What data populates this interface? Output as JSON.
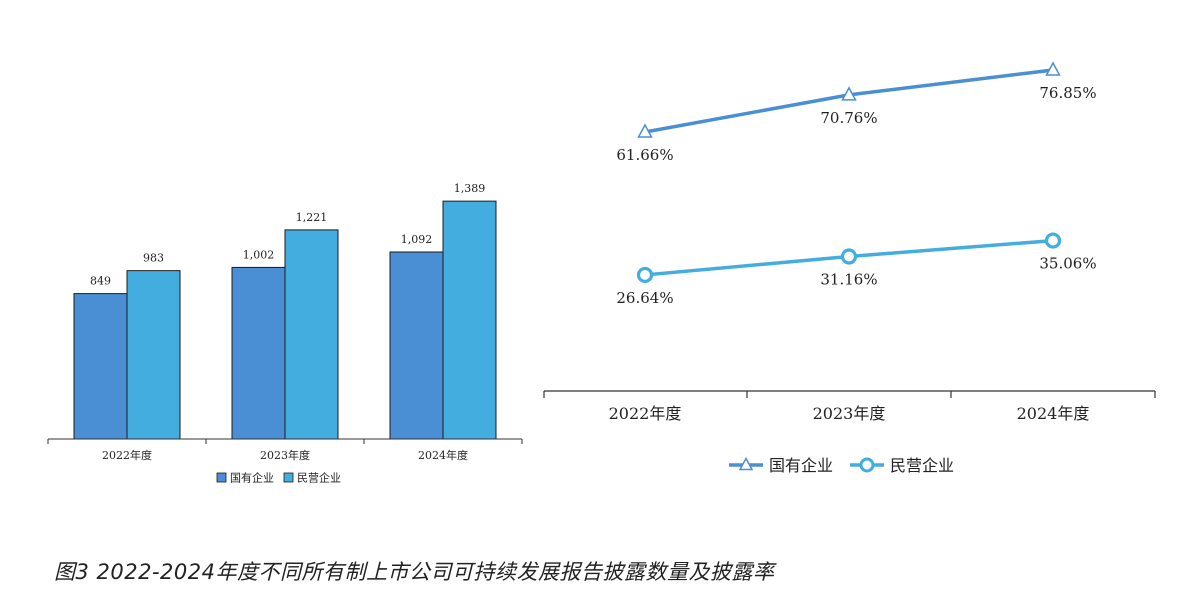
{
  "caption": "图3 2022-2024年度不同所有制上市公司可持续发展报告披露数量及披露率",
  "colors": {
    "state": "#4a8fd4",
    "private": "#44ade0",
    "axis": "#333333"
  },
  "chart_data": [
    {
      "type": "bar",
      "categories": [
        "2022年度",
        "2023年度",
        "2024年度"
      ],
      "series": [
        {
          "name": "国有企业",
          "values": [
            849,
            1002,
            1092
          ],
          "labels": [
            "849",
            "1,002",
            "1,092"
          ]
        },
        {
          "name": "民营企业",
          "values": [
            983,
            1221,
            1389
          ],
          "labels": [
            "983",
            "1,221",
            "1,389"
          ]
        }
      ],
      "ylim": [
        0,
        1600
      ],
      "legend": "bottom"
    },
    {
      "type": "line",
      "categories": [
        "2022年度",
        "2023年度",
        "2024年度"
      ],
      "series": [
        {
          "name": "国有企业",
          "marker": "triangle",
          "values": [
            61.66,
            70.76,
            76.85
          ],
          "labels": [
            "61.66%",
            "70.76%",
            "76.85%"
          ]
        },
        {
          "name": "民营企业",
          "marker": "circle",
          "values": [
            26.64,
            31.16,
            35.06
          ],
          "labels": [
            "26.64%",
            "31.16%",
            "35.06%"
          ]
        }
      ],
      "legend": "bottom"
    }
  ]
}
